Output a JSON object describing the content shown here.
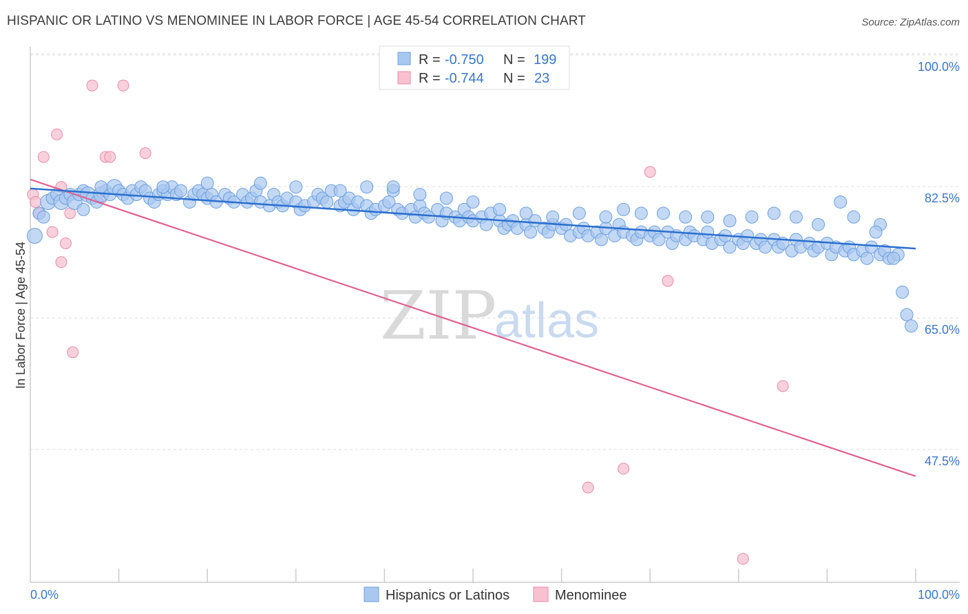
{
  "header": {
    "title": "HISPANIC OR LATINO VS MENOMINEE IN LABOR FORCE | AGE 45-54 CORRELATION CHART",
    "source": "Source: ZipAtlas.com"
  },
  "watermark": {
    "zip": "ZIP",
    "atlas": "atlas"
  },
  "colors": {
    "blue_fill": "#a9c8f0",
    "blue_stroke": "#6a9fe0",
    "blue_line": "#2a6fcf",
    "pink_fill": "#f7c1d0",
    "pink_stroke": "#e88aa6",
    "pink_line": "#e06090",
    "grid": "#dddddd",
    "tick_text": "#3a76c9"
  },
  "legend_top": {
    "rows": [
      {
        "r_label": "R =",
        "r_value": "-0.750",
        "n_label": "N =",
        "n_value": "199"
      },
      {
        "r_label": "R =",
        "r_value": "-0.744",
        "n_label": "N =",
        "n_value": "23"
      }
    ]
  },
  "legend_bottom": [
    "Hispanics or Latinos",
    "Menominee"
  ],
  "chart_data": {
    "type": "scatter",
    "title": "HISPANIC OR LATINO VS MENOMINEE IN LABOR FORCE | AGE 45-54 CORRELATION CHART",
    "xlabel": "",
    "ylabel": "In Labor Force | Age 45-54",
    "xlim": [
      0,
      100
    ],
    "ylim": [
      30,
      102
    ],
    "x_tick_labels": [
      "0.0%",
      "100.0%"
    ],
    "y_ticks": [
      47.5,
      65.0,
      82.5,
      100.0
    ],
    "y_tick_labels": [
      "47.5%",
      "65.0%",
      "82.5%",
      "100.0%"
    ],
    "grid": "horizontal dashed",
    "legend": "top-center",
    "series": [
      {
        "name": "Hispanics or Latinos",
        "r": -0.75,
        "n": 199,
        "trend": {
          "x": [
            0,
            100
          ],
          "y": [
            83.8,
            75.8
          ]
        },
        "points": [
          [
            0.5,
            77.5
          ],
          [
            1,
            80.5
          ],
          [
            1.5,
            80
          ],
          [
            2,
            82
          ],
          [
            2.5,
            82.5
          ],
          [
            3,
            83
          ],
          [
            3.5,
            82
          ],
          [
            4,
            82.5
          ],
          [
            4.5,
            83
          ],
          [
            5,
            82
          ],
          [
            5.5,
            83
          ],
          [
            6,
            83.5
          ],
          [
            6.5,
            83
          ],
          [
            7,
            82.5
          ],
          [
            7.5,
            82
          ],
          [
            8,
            83
          ],
          [
            8.5,
            83.5
          ],
          [
            9,
            83
          ],
          [
            9.5,
            84
          ],
          [
            10,
            83.5
          ],
          [
            10.5,
            83
          ],
          [
            11,
            82.5
          ],
          [
            11.5,
            83.5
          ],
          [
            12,
            83
          ],
          [
            12.5,
            84
          ],
          [
            13,
            83.5
          ],
          [
            13.5,
            82.5
          ],
          [
            14,
            82
          ],
          [
            14.5,
            83
          ],
          [
            15,
            83.5
          ],
          [
            15.5,
            83
          ],
          [
            16,
            84
          ],
          [
            16.5,
            83
          ],
          [
            17,
            83.5
          ],
          [
            18,
            82
          ],
          [
            18.5,
            83
          ],
          [
            19,
            83.5
          ],
          [
            19.5,
            83
          ],
          [
            20,
            82.5
          ],
          [
            20.5,
            83
          ],
          [
            21,
            82
          ],
          [
            22,
            83
          ],
          [
            22.5,
            82.5
          ],
          [
            23,
            82
          ],
          [
            24,
            83
          ],
          [
            24.5,
            82
          ],
          [
            25,
            82.5
          ],
          [
            25.5,
            83.5
          ],
          [
            26,
            82
          ],
          [
            27,
            81.5
          ],
          [
            27.5,
            83
          ],
          [
            28,
            82
          ],
          [
            28.5,
            81.5
          ],
          [
            29,
            82.5
          ],
          [
            30,
            82
          ],
          [
            30.5,
            81
          ],
          [
            31,
            81.5
          ],
          [
            32,
            82
          ],
          [
            32.5,
            83
          ],
          [
            33,
            82.5
          ],
          [
            33.5,
            82
          ],
          [
            34,
            83.5
          ],
          [
            35,
            81.5
          ],
          [
            35.5,
            82
          ],
          [
            36,
            82.5
          ],
          [
            36.5,
            81
          ],
          [
            37,
            82
          ],
          [
            38,
            81.5
          ],
          [
            38.5,
            80.5
          ],
          [
            39,
            81
          ],
          [
            40,
            81.5
          ],
          [
            40.5,
            82
          ],
          [
            41,
            83.5
          ],
          [
            41.5,
            81
          ],
          [
            42,
            80.5
          ],
          [
            43,
            81
          ],
          [
            43.5,
            80
          ],
          [
            44,
            81.5
          ],
          [
            44.5,
            80.5
          ],
          [
            45,
            80
          ],
          [
            46,
            81
          ],
          [
            46.5,
            79.5
          ],
          [
            47,
            80.5
          ],
          [
            48,
            80
          ],
          [
            48.5,
            79.5
          ],
          [
            49,
            81
          ],
          [
            49.5,
            80
          ],
          [
            50,
            79.5
          ],
          [
            51,
            80
          ],
          [
            51.5,
            79
          ],
          [
            52,
            80.5
          ],
          [
            53,
            79.5
          ],
          [
            53.5,
            78.5
          ],
          [
            54,
            79
          ],
          [
            54.5,
            79.5
          ],
          [
            55,
            78.5
          ],
          [
            56,
            79
          ],
          [
            56.5,
            78
          ],
          [
            57,
            79.5
          ],
          [
            58,
            78.5
          ],
          [
            58.5,
            78
          ],
          [
            59,
            79
          ],
          [
            60,
            78.5
          ],
          [
            60.5,
            79
          ],
          [
            61,
            77.5
          ],
          [
            62,
            78
          ],
          [
            62.5,
            78.5
          ],
          [
            63,
            77.5
          ],
          [
            64,
            78
          ],
          [
            64.5,
            77
          ],
          [
            65,
            78.5
          ],
          [
            66,
            77.5
          ],
          [
            66.5,
            79
          ],
          [
            67,
            78
          ],
          [
            68,
            77.5
          ],
          [
            68.5,
            77
          ],
          [
            69,
            78
          ],
          [
            70,
            77.5
          ],
          [
            70.5,
            78
          ],
          [
            71,
            77
          ],
          [
            72,
            78
          ],
          [
            72.5,
            76.5
          ],
          [
            73,
            77.5
          ],
          [
            74,
            77
          ],
          [
            74.5,
            78
          ],
          [
            75,
            77.5
          ],
          [
            76,
            77
          ],
          [
            76.5,
            78
          ],
          [
            77,
            76.5
          ],
          [
            78,
            77
          ],
          [
            78.5,
            77.5
          ],
          [
            79,
            76
          ],
          [
            80,
            77
          ],
          [
            80.5,
            76.5
          ],
          [
            81,
            77.5
          ],
          [
            82,
            76.5
          ],
          [
            82.5,
            77
          ],
          [
            83,
            76
          ],
          [
            84,
            77
          ],
          [
            84.5,
            76
          ],
          [
            85,
            76.5
          ],
          [
            86,
            75.5
          ],
          [
            86.5,
            77
          ],
          [
            87,
            76
          ],
          [
            88,
            76.5
          ],
          [
            88.5,
            75.5
          ],
          [
            89,
            76
          ],
          [
            90,
            76.5
          ],
          [
            90.5,
            75
          ],
          [
            91,
            76
          ],
          [
            92,
            75.5
          ],
          [
            92.5,
            76
          ],
          [
            93,
            75
          ],
          [
            94,
            75.5
          ],
          [
            94.5,
            74.5
          ],
          [
            95,
            76
          ],
          [
            96,
            75
          ],
          [
            96.5,
            75.5
          ],
          [
            97,
            74.5
          ],
          [
            98,
            75
          ],
          [
            98.5,
            70
          ],
          [
            99,
            67
          ],
          [
            99.5,
            65.5
          ],
          [
            97.5,
            74.5
          ],
          [
            96,
            79
          ],
          [
            95.5,
            78
          ],
          [
            93,
            80
          ],
          [
            91.5,
            82
          ],
          [
            89,
            79
          ],
          [
            86.5,
            80
          ],
          [
            84,
            80.5
          ],
          [
            81.5,
            80
          ],
          [
            79,
            79.5
          ],
          [
            76.5,
            80
          ],
          [
            74,
            80
          ],
          [
            71.5,
            80.5
          ],
          [
            69,
            80.5
          ],
          [
            67,
            81
          ],
          [
            65,
            80
          ],
          [
            62,
            80.5
          ],
          [
            59,
            80
          ],
          [
            56,
            80.5
          ],
          [
            53,
            81
          ],
          [
            50,
            82
          ],
          [
            47,
            82.5
          ],
          [
            44,
            83
          ],
          [
            41,
            84
          ],
          [
            38,
            84
          ],
          [
            35,
            83.5
          ],
          [
            30,
            84
          ],
          [
            26,
            84.5
          ],
          [
            20,
            84.5
          ],
          [
            15,
            84
          ],
          [
            8,
            84
          ],
          [
            6,
            81
          ]
        ]
      },
      {
        "name": "Menominee",
        "r": -0.744,
        "n": 23,
        "trend": {
          "x": [
            0,
            100
          ],
          "y": [
            85,
            45.5
          ]
        },
        "points": [
          [
            0.3,
            83
          ],
          [
            0.6,
            82
          ],
          [
            1,
            80.5
          ],
          [
            1.5,
            88
          ],
          [
            2.5,
            78
          ],
          [
            3,
            91
          ],
          [
            3.5,
            84
          ],
          [
            3.5,
            74
          ],
          [
            4,
            76.5
          ],
          [
            4.5,
            80.5
          ],
          [
            4.8,
            62
          ],
          [
            7,
            97.5
          ],
          [
            8,
            82.5
          ],
          [
            8.5,
            88
          ],
          [
            9,
            88
          ],
          [
            10.5,
            97.5
          ],
          [
            13,
            88.5
          ],
          [
            63,
            44
          ],
          [
            67,
            46.5
          ],
          [
            72,
            71.5
          ],
          [
            70,
            86
          ],
          [
            80.5,
            34.5
          ],
          [
            85,
            57.5
          ]
        ]
      }
    ]
  }
}
